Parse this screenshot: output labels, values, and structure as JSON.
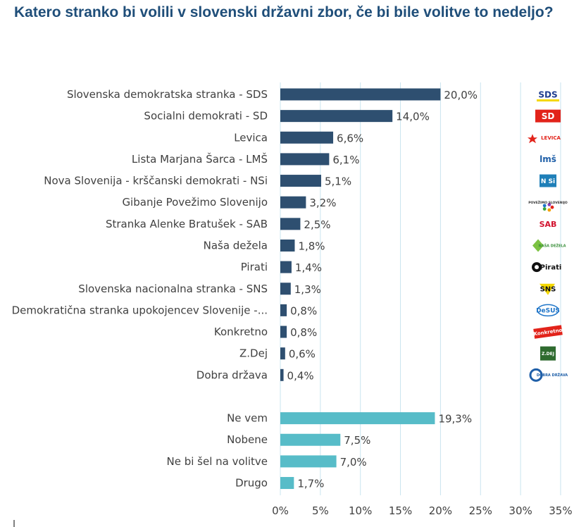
{
  "title": "Katero stranko bi volili v slovenski državni zbor, če bi bile volitve to nedeljo?",
  "colors": {
    "title": "#1f4e79",
    "party_bar": "#2e4f70",
    "other_bar": "#57bcc8",
    "grid": "#c9e4ef",
    "text": "#404040"
  },
  "chart_data": {
    "type": "bar",
    "orientation": "horizontal",
    "title": "Katero stranko bi volili v slovenski državni zbor, če bi bile volitve to nedeljo?",
    "xlabel": "",
    "ylabel": "",
    "xlim": [
      0,
      35
    ],
    "grid": true,
    "ticks": [
      0,
      5,
      10,
      15,
      20,
      25,
      30,
      35
    ],
    "tick_labels": [
      "0%",
      "5%",
      "10%",
      "15%",
      "20%",
      "25%",
      "30%",
      "35%"
    ],
    "groups": [
      {
        "name": "parties",
        "color": "#2e4f70",
        "items": [
          {
            "category": "Slovenska demokratska stranka - SDS",
            "value": 20.0,
            "label": "20,0%",
            "logo": {
              "name": "sds-logo",
              "text": "SDS"
            }
          },
          {
            "category": "Socialni demokrati - SD",
            "value": 14.0,
            "label": "14,0%",
            "logo": {
              "name": "sd-logo",
              "text": "SD"
            }
          },
          {
            "category": "Levica",
            "value": 6.6,
            "label": "6,6%",
            "logo": {
              "name": "levica-logo",
              "text": "LEVICA"
            }
          },
          {
            "category": "Lista Marjana Šarca - LMŠ",
            "value": 6.1,
            "label": "6,1%",
            "logo": {
              "name": "lms-logo",
              "text": "lmš"
            }
          },
          {
            "category": "Nova Slovenija - krščanski demokrati - NSi",
            "value": 5.1,
            "label": "5,1%",
            "logo": {
              "name": "nsi-logo",
              "text": "N Si"
            }
          },
          {
            "category": "Gibanje Povežimo Slovenijo",
            "value": 3.2,
            "label": "3,2%",
            "logo": {
              "name": "gps-logo",
              "text": "POVEŽIMO SLOVENIJO"
            }
          },
          {
            "category": "Stranka Alenke Bratušek - SAB",
            "value": 2.5,
            "label": "2,5%",
            "logo": {
              "name": "sab-logo",
              "text": "SAB"
            }
          },
          {
            "category": "Naša dežela",
            "value": 1.8,
            "label": "1,8%",
            "logo": {
              "name": "nasa-dezela-logo",
              "text": "NAŠA DEŽELA"
            }
          },
          {
            "category": "Pirati",
            "value": 1.4,
            "label": "1,4%",
            "logo": {
              "name": "pirati-logo",
              "text": "Pirati"
            }
          },
          {
            "category": "Slovenska nacionalna stranka - SNS",
            "value": 1.3,
            "label": "1,3%",
            "logo": {
              "name": "sns-logo",
              "text": "SNS"
            }
          },
          {
            "category": "Demokratična stranka upokojencev Slovenije -...",
            "value": 0.8,
            "label": "0,8%",
            "logo": {
              "name": "desus-logo",
              "text": "DeSUS"
            }
          },
          {
            "category": "Konkretno",
            "value": 0.8,
            "label": "0,8%",
            "logo": {
              "name": "konkretno-logo",
              "text": "Konkretno"
            }
          },
          {
            "category": "Z.Dej",
            "value": 0.6,
            "label": "0,6%",
            "logo": {
              "name": "zdej-logo",
              "text": "Z.DEJ"
            }
          },
          {
            "category": "Dobra država",
            "value": 0.4,
            "label": "0,4%",
            "logo": {
              "name": "dobra-drzava-logo",
              "text": "DOBRA DRŽAVA"
            }
          }
        ]
      },
      {
        "name": "other-answers",
        "color": "#57bcc8",
        "items": [
          {
            "category": "Ne vem",
            "value": 19.3,
            "label": "19,3%"
          },
          {
            "category": "Nobene",
            "value": 7.5,
            "label": "7,5%"
          },
          {
            "category": "Ne bi šel na volitve",
            "value": 7.0,
            "label": "7,0%"
          },
          {
            "category": "Drugo",
            "value": 1.7,
            "label": "1,7%"
          }
        ]
      }
    ]
  }
}
